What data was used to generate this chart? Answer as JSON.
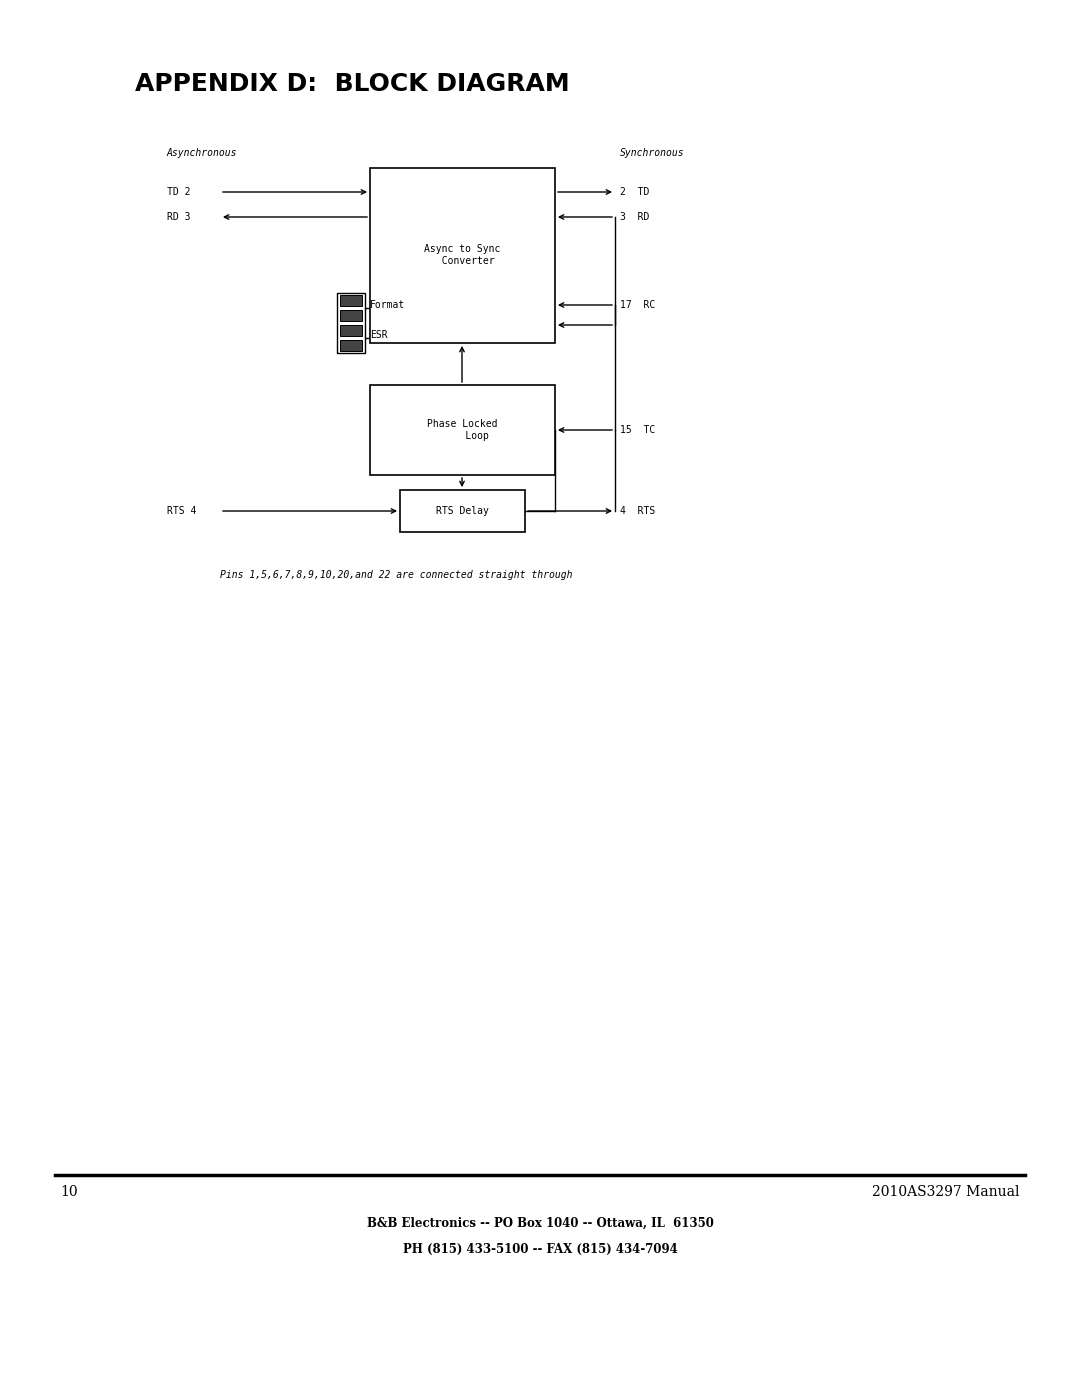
{
  "title": "APPENDIX D:  BLOCK DIAGRAM",
  "title_fontsize": 18,
  "title_fontweight": "bold",
  "bg_color": "#ffffff",
  "text_color": "#000000",
  "page_number": "10",
  "manual_title": "2010AS3297 Manual",
  "footer_line1": "B&B Electronics -- PO Box 1040 -- Ottawa, IL  61350",
  "footer_line2": "PH (815) 433-5100 -- FAX (815) 434-7094",
  "label_async": "Asynchronous",
  "label_sync": "Synchronous",
  "label_td2": "TD 2",
  "label_rd3": "RD 3",
  "label_format": "Format",
  "label_esr": "ESR",
  "label_async_sync": "Async to Sync\n  Converter",
  "label_phase": "Phase Locked\n     Loop",
  "label_rts_delay": "RTS Delay",
  "label_rts4": "RTS 4",
  "label_2td": "2  TD",
  "label_3rd": "3  RD",
  "label_17rc": "17  RC",
  "label_15tc": "15  TC",
  "label_4rts": "4  RTS",
  "note": "Pins 1,5,6,7,8,9,10,20,and 22 are connected straight through",
  "mono_fontsize": 7,
  "diagram_scale": 1.0
}
